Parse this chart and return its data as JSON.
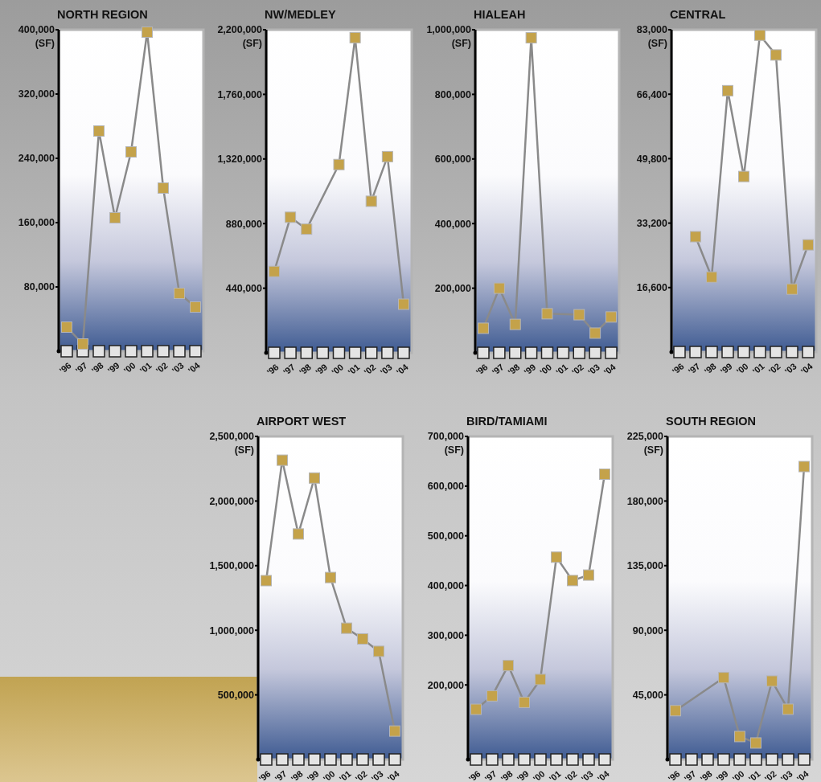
{
  "chart_data": [
    {
      "type": "line",
      "title": "NORTH REGION",
      "ylabel": "(SF)",
      "categories": [
        "'96",
        "'97",
        "'98",
        "'99",
        "'00",
        "'01",
        "'02",
        "'03",
        "'04"
      ],
      "ylim": [
        0,
        400000
      ],
      "yticks": [
        {
          "value": 80000,
          "label": "80,000"
        },
        {
          "value": 160000,
          "label": "160,000"
        },
        {
          "value": 240000,
          "label": "240,000"
        },
        {
          "value": 320000,
          "label": "320,000"
        },
        {
          "value": 400000,
          "label": "400,000"
        }
      ],
      "marker": "square",
      "grid": false,
      "series": [
        {
          "color": "#8a8a8a",
          "colors": [
            "#c4a24a",
            "#c4a24a",
            "#c4a24a",
            "#c4a24a",
            "#c4a24a",
            "#c4a24a",
            "#c4a24a",
            "#c4a24a",
            "#c4a24a"
          ],
          "values": [
            30000,
            9000,
            274000,
            166000,
            248000,
            397000,
            203000,
            72000,
            55000
          ]
        }
      ]
    },
    {
      "type": "line",
      "title": "NW/MEDLEY",
      "ylabel": "(SF)",
      "categories": [
        "'96",
        "'97",
        "'98",
        "'99",
        "'00",
        "'01",
        "'02",
        "'03",
        "'04"
      ],
      "ylim": [
        0,
        2200000
      ],
      "yticks": [
        {
          "value": 440000,
          "label": "440,000"
        },
        {
          "value": 880000,
          "label": "880,000"
        },
        {
          "value": 1320000,
          "label": "1,320,000"
        },
        {
          "value": 1760000,
          "label": "1,760,000"
        },
        {
          "value": 2200000,
          "label": "2,200,000"
        }
      ],
      "marker": "square",
      "grid": false,
      "series": [
        {
          "color": "#8a8a8a",
          "colors": [
            "#c4a24a",
            "#c4a24a",
            "#c4a24a",
            null,
            "#c4a24a",
            "#c4a24a",
            "#c4a24a",
            "#c4a24a",
            "#c4a24a"
          ],
          "values": [
            554000,
            923000,
            842000,
            null,
            1282000,
            2146000,
            1032000,
            1336000,
            331000
          ]
        }
      ]
    },
    {
      "type": "line",
      "title": "HIALEAH",
      "ylabel": "(SF)",
      "categories": [
        "'96",
        "'97",
        "'98",
        "'99",
        "'00",
        "'01",
        "'02",
        "'03",
        "'04"
      ],
      "ylim": [
        0,
        1000000
      ],
      "yticks": [
        {
          "value": 200000,
          "label": "200,000"
        },
        {
          "value": 400000,
          "label": "400,000"
        },
        {
          "value": 600000,
          "label": "600,000"
        },
        {
          "value": 800000,
          "label": "800,000"
        },
        {
          "value": 1000000,
          "label": "1,000,000"
        }
      ],
      "marker": "square",
      "grid": false,
      "series": [
        {
          "color": "#8a8a8a",
          "colors": [
            "#c4a24a",
            "#c4a24a",
            "#c4a24a",
            "#c4a24a",
            "#c4a24a",
            null,
            "#c4a24a",
            "#c4a24a",
            "#c4a24a"
          ],
          "values": [
            76000,
            200000,
            88000,
            975000,
            121000,
            null,
            118000,
            61000,
            111000
          ]
        }
      ]
    },
    {
      "type": "line",
      "title": "CENTRAL",
      "ylabel": "(SF)",
      "categories": [
        "'96",
        "'97",
        "'98",
        "'99",
        "'00",
        "'01",
        "'02",
        "'03",
        "'04"
      ],
      "ylim": [
        0,
        83000
      ],
      "yticks": [
        {
          "value": 16600,
          "label": "16,600"
        },
        {
          "value": 33200,
          "label": "33,200"
        },
        {
          "value": 49800,
          "label": "49,800"
        },
        {
          "value": 66400,
          "label": "66,400"
        },
        {
          "value": 83000,
          "label": "83,000"
        }
      ],
      "marker": "square",
      "grid": false,
      "series": [
        {
          "color": "#8a8a8a",
          "colors": [
            null,
            "#c4a24a",
            "#c4a24a",
            "#c4a24a",
            "#c4a24a",
            "#c4a24a",
            "#c4a24a",
            "#c4a24a",
            "#c4a24a"
          ],
          "values": [
            null,
            29700,
            19300,
            67300,
            45200,
            81600,
            76500,
            16200,
            27600
          ]
        }
      ]
    },
    {
      "type": "line",
      "title": "AIRPORT WEST",
      "ylabel": "(SF)",
      "categories": [
        "'96",
        "'97",
        "'98",
        "'99",
        "'00",
        "'01",
        "'02",
        "'03",
        "'04"
      ],
      "ylim": [
        0,
        2500000
      ],
      "yticks": [
        {
          "value": 500000,
          "label": "500,000"
        },
        {
          "value": 1000000,
          "label": "1,000,000"
        },
        {
          "value": 1500000,
          "label": "1,500,000"
        },
        {
          "value": 2000000,
          "label": "2,000,000"
        },
        {
          "value": 2500000,
          "label": "2,500,000"
        }
      ],
      "marker": "square",
      "grid": false,
      "series": [
        {
          "color": "#8a8a8a",
          "colors": [
            "#c4a24a",
            "#c4a24a",
            "#c4a24a",
            "#c4a24a",
            "#c4a24a",
            "#c4a24a",
            "#c4a24a",
            "#c4a24a",
            "#c4a24a"
          ],
          "values": [
            1384000,
            2316000,
            1745000,
            2178000,
            1408000,
            1016000,
            933000,
            837000,
            220000
          ]
        }
      ]
    },
    {
      "type": "line",
      "title": "BIRD/TAMIAMI",
      "ylabel": "(SF)",
      "categories": [
        "'96",
        "'97",
        "'98",
        "'99",
        "'00",
        "'01",
        "'02",
        "'03",
        "'04"
      ],
      "ylim": [
        50000,
        700000
      ],
      "yticks": [
        {
          "value": 200000,
          "label": "200,000"
        },
        {
          "value": 300000,
          "label": "300,000"
        },
        {
          "value": 400000,
          "label": "400,000"
        },
        {
          "value": 500000,
          "label": "500,000"
        },
        {
          "value": 600000,
          "label": "600,000"
        },
        {
          "value": 700000,
          "label": "700,000"
        }
      ],
      "marker": "square",
      "grid": false,
      "series": [
        {
          "color": "#8a8a8a",
          "colors": [
            "#c4a24a",
            "#c4a24a",
            "#c4a24a",
            "#c4a24a",
            "#c4a24a",
            "#c4a24a",
            "#c4a24a",
            "#c4a24a",
            "#c4a24a"
          ],
          "values": [
            151000,
            178000,
            239000,
            165000,
            211000,
            457000,
            410000,
            421000,
            624000
          ]
        }
      ]
    },
    {
      "type": "line",
      "title": "SOUTH REGION",
      "ylabel": "(SF)",
      "categories": [
        "'96",
        "'97",
        "'98",
        "'99",
        "'00",
        "'01",
        "'02",
        "'03",
        "'04"
      ],
      "ylim": [
        0,
        225000
      ],
      "yticks": [
        {
          "value": 45000,
          "label": "45,000"
        },
        {
          "value": 90000,
          "label": "90,000"
        },
        {
          "value": 135000,
          "label": "135,000"
        },
        {
          "value": 180000,
          "label": "180,000"
        },
        {
          "value": 225000,
          "label": "225,000"
        }
      ],
      "marker": "square",
      "grid": false,
      "series": [
        {
          "color": "#8a8a8a",
          "colors": [
            "#c4a24a",
            null,
            null,
            "#c4a24a",
            "#c4a24a",
            "#c4a24a",
            "#c4a24a",
            "#c4a24a",
            "#c4a24a"
          ],
          "values": [
            34000,
            null,
            null,
            57000,
            16000,
            11500,
            54600,
            35000,
            204000
          ]
        }
      ]
    }
  ]
}
